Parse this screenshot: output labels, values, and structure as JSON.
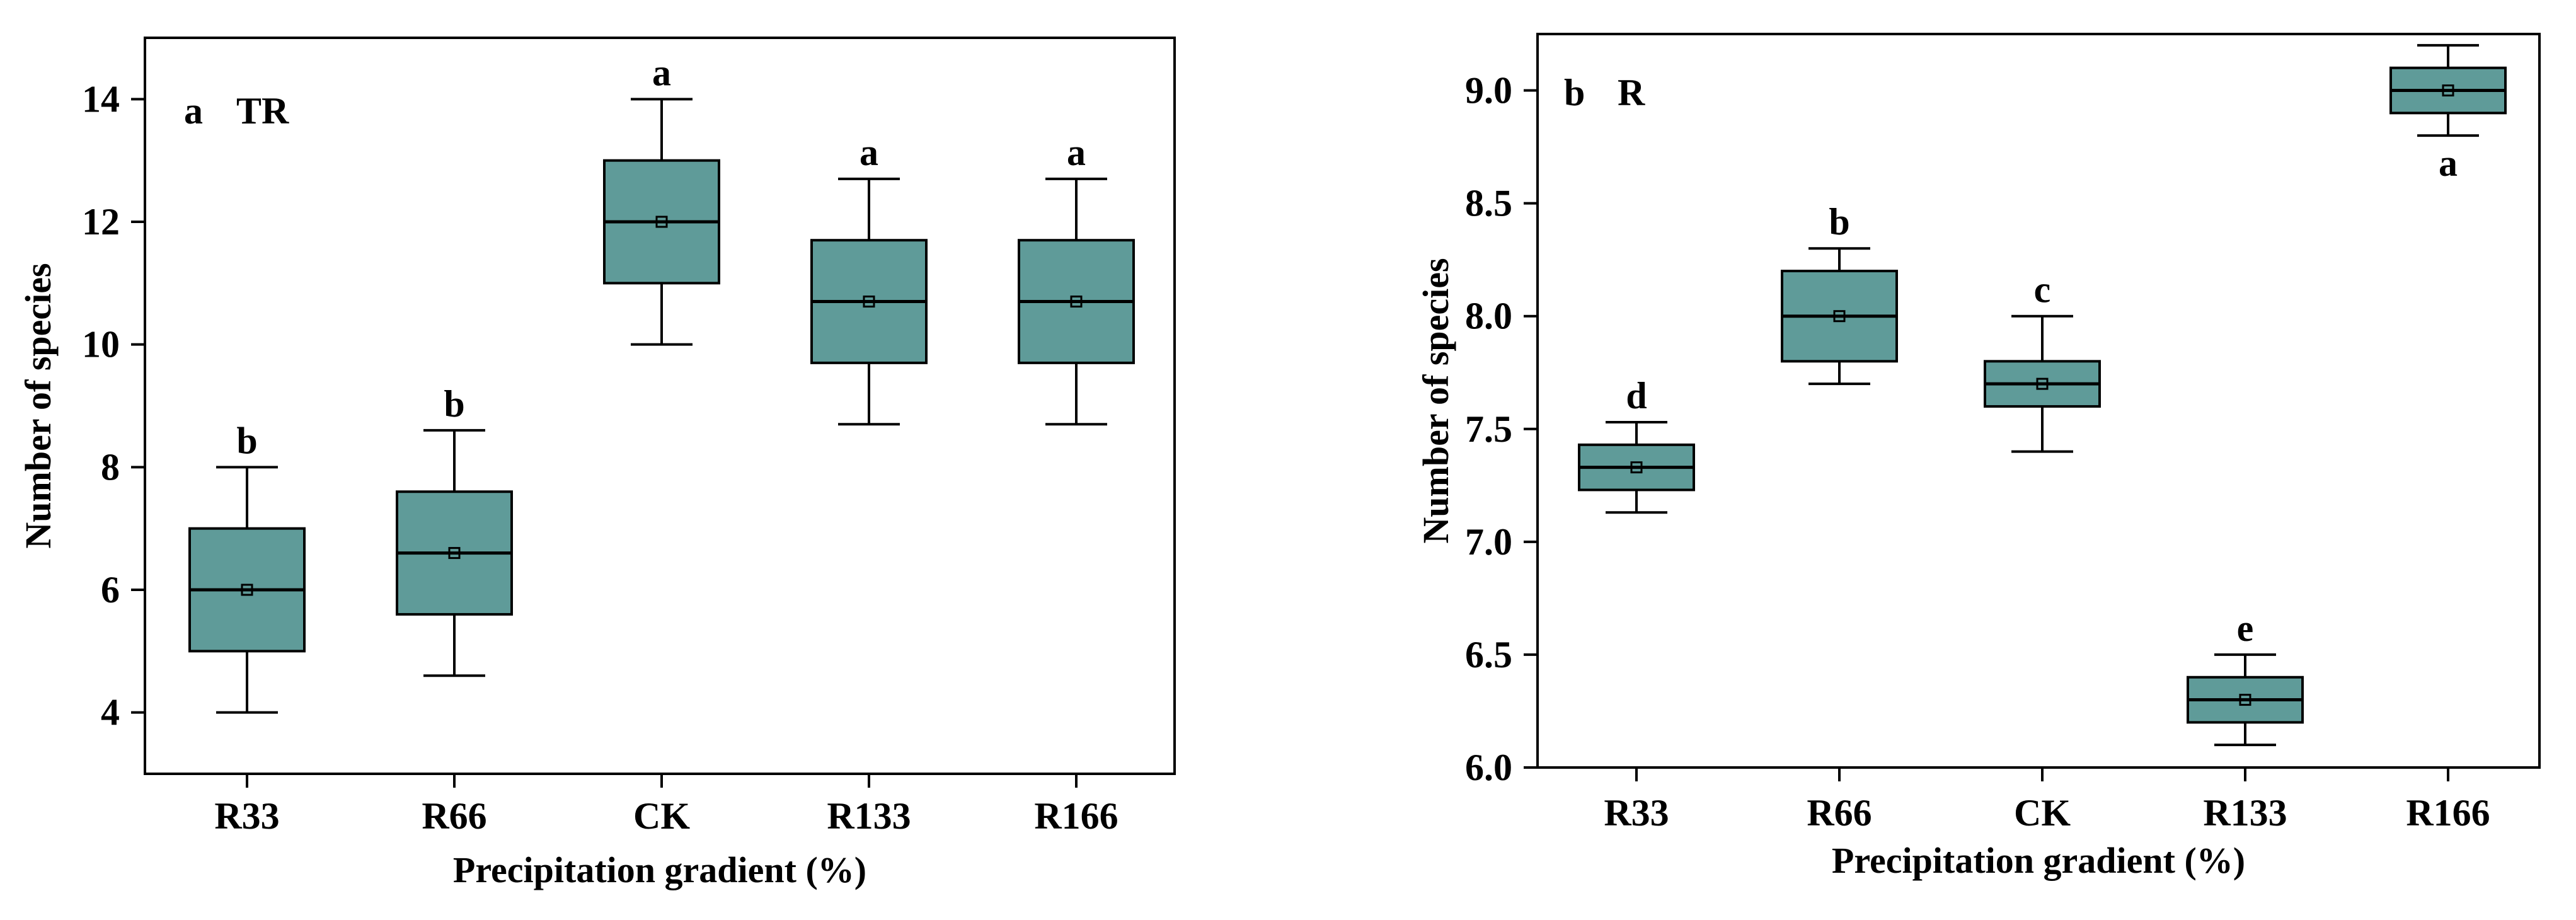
{
  "colors": {
    "box_fill": "#5f9b99",
    "stroke": "#000000",
    "background": "#ffffff"
  },
  "chart_data": [
    {
      "type": "box",
      "panel_label": "a",
      "title": "TR",
      "xlabel": "Precipitation gradient (%)",
      "ylabel": "Number of species",
      "ylim": [
        3.0,
        15.0
      ],
      "yticks": [
        4,
        6,
        8,
        10,
        12,
        14
      ],
      "ytick_labels": [
        "4",
        "6",
        "8",
        "10",
        "12",
        "14"
      ],
      "categories": [
        "R33",
        "R66",
        "CK",
        "R133",
        "R166"
      ],
      "boxes": [
        {
          "category": "R33",
          "whisker_low": 4.0,
          "q1": 5.0,
          "median": 6.0,
          "mean": 6.0,
          "q3": 7.0,
          "whisker_high": 8.0,
          "letter": "b"
        },
        {
          "category": "R66",
          "whisker_low": 4.6,
          "q1": 5.6,
          "median": 6.6,
          "mean": 6.6,
          "q3": 7.6,
          "whisker_high": 8.6,
          "letter": "b"
        },
        {
          "category": "CK",
          "whisker_low": 10.0,
          "q1": 11.0,
          "median": 12.0,
          "mean": 12.0,
          "q3": 13.0,
          "whisker_high": 14.0,
          "letter": "a"
        },
        {
          "category": "R133",
          "whisker_low": 8.7,
          "q1": 9.7,
          "median": 10.7,
          "mean": 10.7,
          "q3": 11.7,
          "whisker_high": 12.7,
          "letter": "a"
        },
        {
          "category": "R166",
          "whisker_low": 8.7,
          "q1": 9.7,
          "median": 10.7,
          "mean": 10.7,
          "q3": 11.7,
          "whisker_high": 12.7,
          "letter": "a"
        }
      ]
    },
    {
      "type": "box",
      "panel_label": "b",
      "title": "R",
      "xlabel": "Precipitation gradient (%)",
      "ylabel": "Number of species",
      "ylim": [
        6.0,
        9.25
      ],
      "yticks": [
        6.0,
        6.5,
        7.0,
        7.5,
        8.0,
        8.5,
        9.0
      ],
      "ytick_labels": [
        "6.0",
        "6.5",
        "7.0",
        "7.5",
        "8.0",
        "8.5",
        "9.0"
      ],
      "categories": [
        "R33",
        "R66",
        "CK",
        "R133",
        "R166"
      ],
      "boxes": [
        {
          "category": "R33",
          "whisker_low": 7.13,
          "q1": 7.23,
          "median": 7.33,
          "mean": 7.33,
          "q3": 7.43,
          "whisker_high": 7.53,
          "letter": "d"
        },
        {
          "category": "R66",
          "whisker_low": 7.7,
          "q1": 7.8,
          "median": 8.0,
          "mean": 8.0,
          "q3": 8.2,
          "whisker_high": 8.3,
          "letter": "b"
        },
        {
          "category": "CK",
          "whisker_low": 7.4,
          "q1": 7.6,
          "median": 7.7,
          "mean": 7.7,
          "q3": 7.8,
          "whisker_high": 8.0,
          "letter": "c"
        },
        {
          "category": "R133",
          "whisker_low": 6.1,
          "q1": 6.2,
          "median": 6.3,
          "mean": 6.3,
          "q3": 6.4,
          "whisker_high": 6.5,
          "letter": "e"
        },
        {
          "category": "R166",
          "whisker_low": 8.8,
          "q1": 8.9,
          "median": 9.0,
          "mean": 9.0,
          "q3": 9.1,
          "whisker_high": 9.2,
          "letter": "a",
          "letter_position": "below"
        }
      ]
    }
  ]
}
